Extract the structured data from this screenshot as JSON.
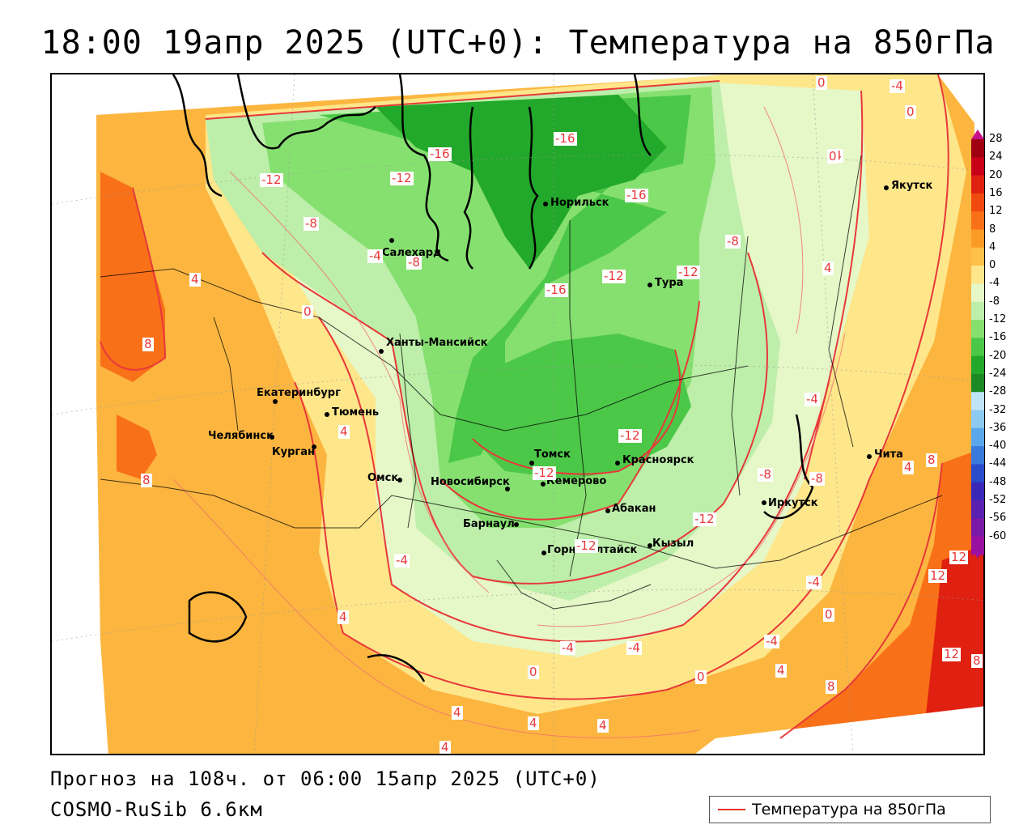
{
  "title": "18:00 19апр 2025 (UTC+0): Температура на 850гПа",
  "forecast_line": "Прогноз на 108ч. от 06:00 15апр 2025 (UTC+0)",
  "model_line": "COSMO-RuSib 6.6км",
  "legend": {
    "label": "Температура на 850гПа",
    "line_color": "#e83030"
  },
  "colorscale": {
    "ticks": [
      "28",
      "24",
      "20",
      "16",
      "12",
      "8",
      "4",
      "0",
      "-4",
      "-8",
      "-12",
      "-16",
      "-20",
      "-24",
      "-28",
      "-32",
      "-36",
      "-40",
      "-44",
      "-48",
      "-52",
      "-56",
      "-60"
    ],
    "colors": [
      "#a00010",
      "#c80018",
      "#e02010",
      "#f04a10",
      "#f87018",
      "#fc9a28",
      "#fdc048",
      "#fee68a",
      "#e6f7c8",
      "#bdeeaa",
      "#86e070",
      "#4cc848",
      "#22a82a",
      "#1c8a24",
      "#bfe4f8",
      "#8ccaf2",
      "#5aa8ea",
      "#3a7adc",
      "#2a4ccc",
      "#3a28b8",
      "#5a20b0",
      "#7a18a8",
      "#9a10a0"
    ]
  },
  "cities": [
    {
      "name": "Норильск"
    },
    {
      "name": "Якутск"
    },
    {
      "name": "Салехард"
    },
    {
      "name": "Тура"
    },
    {
      "name": "Ханты-Мансийск"
    },
    {
      "name": "Екатеринбург"
    },
    {
      "name": "Тюмень"
    },
    {
      "name": "Челябинск"
    },
    {
      "name": "Курган"
    },
    {
      "name": "Омск"
    },
    {
      "name": "Томск"
    },
    {
      "name": "Красноярск"
    },
    {
      "name": "Новосибирск"
    },
    {
      "name": "Кемерово"
    },
    {
      "name": "Абакан"
    },
    {
      "name": "Барнаул"
    },
    {
      "name": "Иркутск"
    },
    {
      "name": "Чита"
    },
    {
      "name": "Кызыл"
    },
    {
      "name": "Горно-Алтайск"
    }
  ],
  "contour_labels": [
    "0",
    "-4",
    "0",
    "-4",
    "-16",
    "-16",
    "-12",
    "-12",
    "-16",
    "-12",
    "-8",
    "-4",
    "-8",
    "-8",
    "-12",
    "-16",
    "-12",
    "-12",
    "4",
    "0",
    "4",
    "8",
    "4",
    "8",
    "4",
    "0",
    "-4",
    "-4",
    "-12",
    "-12",
    "-8",
    "-8",
    "-4",
    "-4",
    "-4",
    "0",
    "-4",
    "4",
    "0",
    "4",
    "4",
    "4",
    "4",
    "0",
    "8",
    "8",
    "12",
    "12",
    "12",
    "8",
    "4"
  ]
}
